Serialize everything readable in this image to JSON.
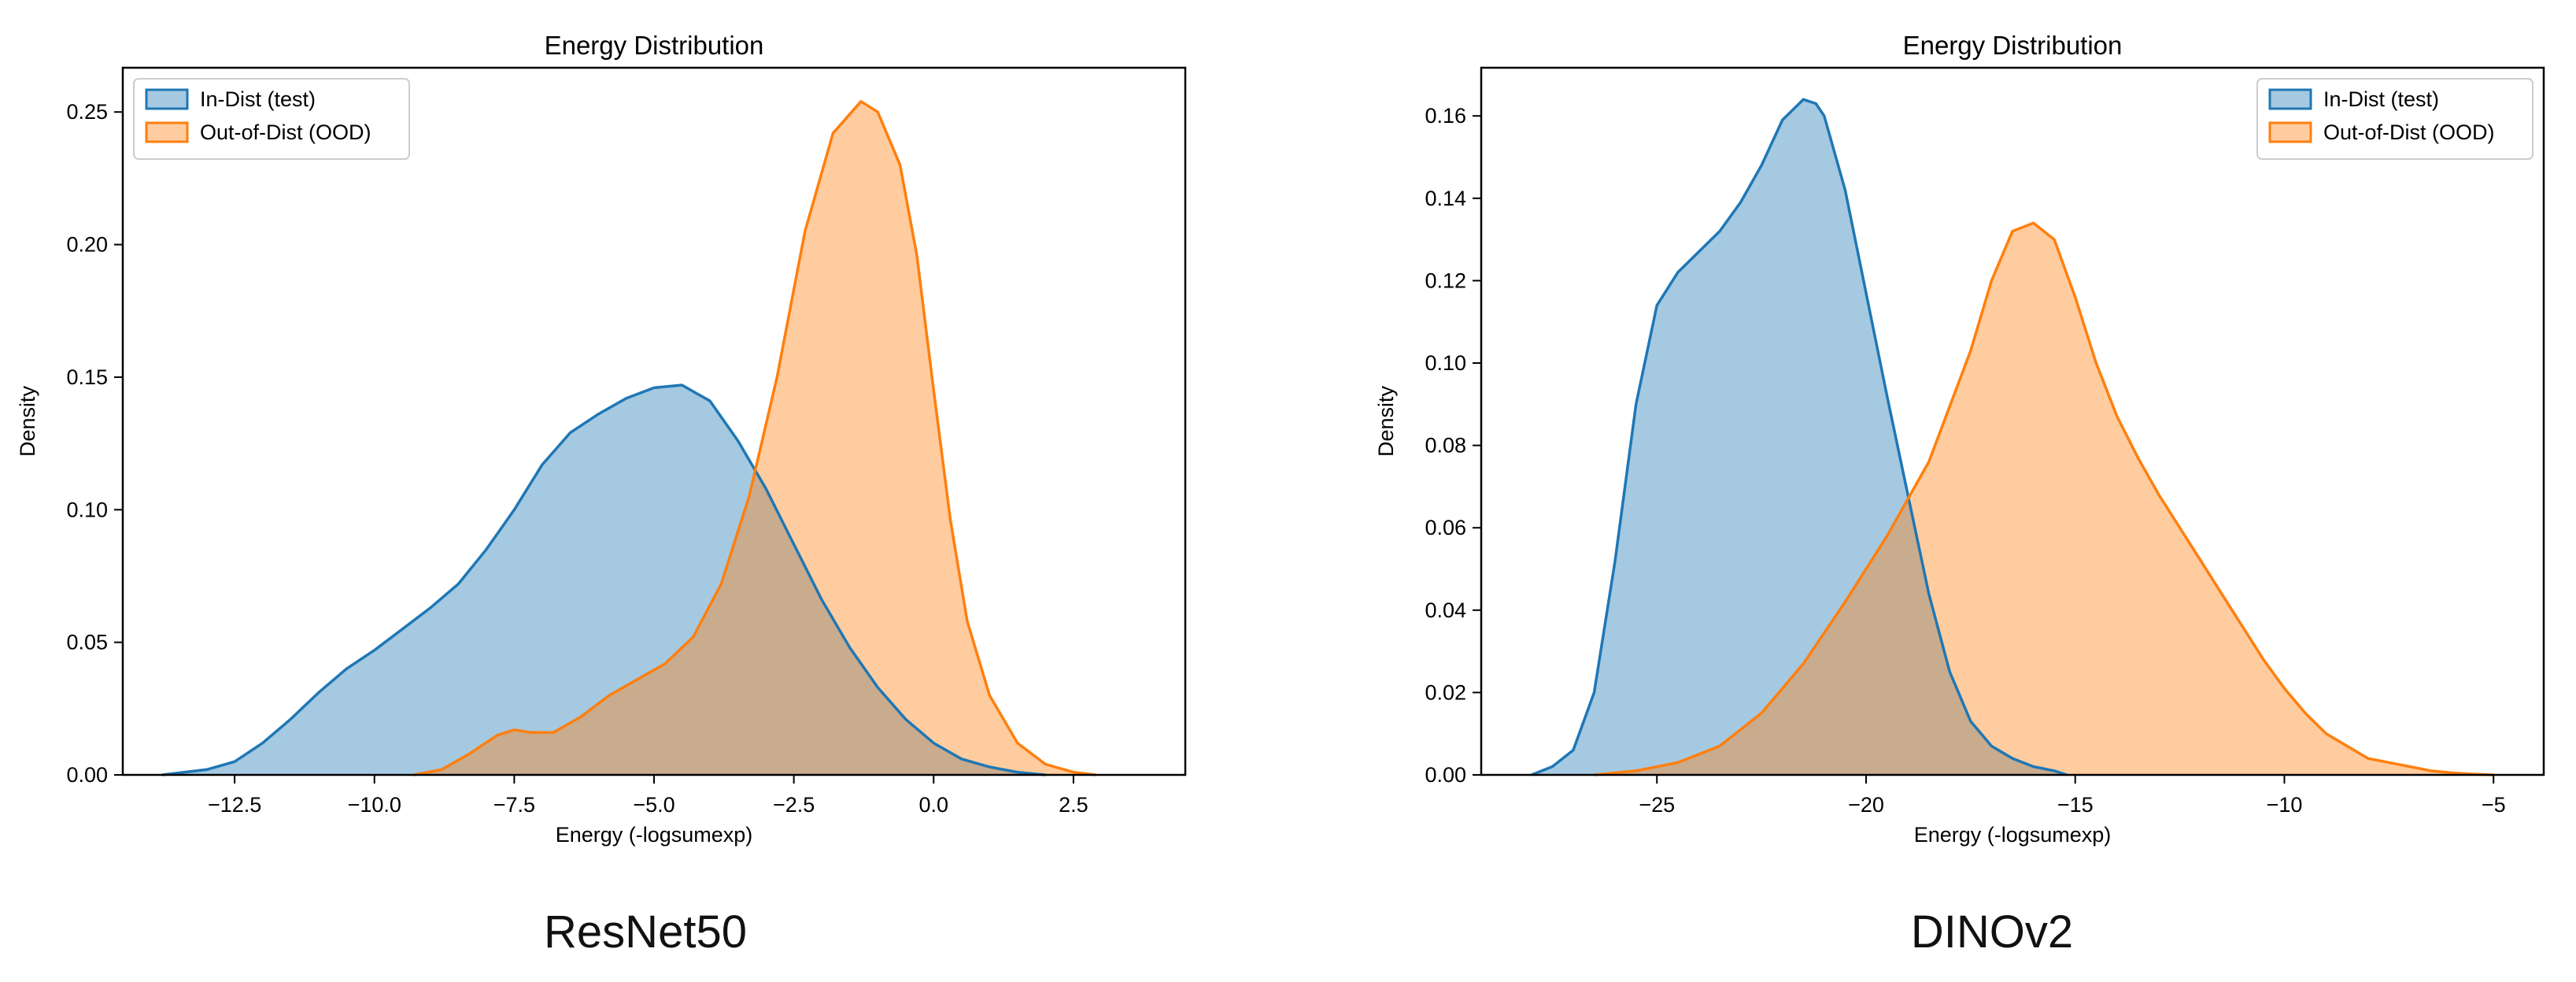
{
  "charts": [
    {
      "chart_data": {
        "type": "area",
        "title": "Energy Distribution",
        "xlabel": "Energy (-logsumexp)",
        "ylabel": "Density",
        "xlim": [
          -14.5,
          4.5
        ],
        "ylim": [
          0,
          0.2667
        ],
        "xticks": [
          -12.5,
          -10.0,
          -7.5,
          -5.0,
          -2.5,
          0.0,
          2.5
        ],
        "xtick_labels": [
          "−12.5",
          "−10.0",
          "−7.5",
          "−5.0",
          "−2.5",
          "0.0",
          "2.5"
        ],
        "yticks": [
          0,
          0.05,
          0.1,
          0.15,
          0.2,
          0.25
        ],
        "ytick_labels": [
          "0.00",
          "0.05",
          "0.10",
          "0.15",
          "0.20",
          "0.25"
        ],
        "legend": "top-left",
        "grid": false,
        "series": [
          {
            "name": "In-Dist (test)",
            "color": "#1f77b4",
            "x": [
              -13.8,
              -13.0,
              -12.5,
              -12.0,
              -11.5,
              -11.0,
              -10.5,
              -10.0,
              -9.5,
              -9.0,
              -8.5,
              -8.0,
              -7.5,
              -7.0,
              -6.5,
              -6.0,
              -5.5,
              -5.0,
              -4.5,
              -4.0,
              -3.5,
              -3.0,
              -2.5,
              -2.0,
              -1.5,
              -1.0,
              -0.5,
              0.0,
              0.5,
              1.0,
              1.5,
              2.0
            ],
            "y": [
              0.0,
              0.002,
              0.005,
              0.012,
              0.021,
              0.031,
              0.04,
              0.047,
              0.055,
              0.063,
              0.072,
              0.085,
              0.1,
              0.117,
              0.129,
              0.136,
              0.142,
              0.146,
              0.147,
              0.141,
              0.126,
              0.108,
              0.087,
              0.066,
              0.048,
              0.033,
              0.021,
              0.012,
              0.006,
              0.003,
              0.001,
              0.0
            ]
          },
          {
            "name": "Out-of-Dist (OOD)",
            "color": "#ff7f0e",
            "x": [
              -9.3,
              -8.8,
              -8.3,
              -7.8,
              -7.5,
              -7.2,
              -6.8,
              -6.3,
              -5.8,
              -5.3,
              -4.8,
              -4.3,
              -3.8,
              -3.3,
              -2.8,
              -2.3,
              -1.8,
              -1.3,
              -1.0,
              -0.6,
              -0.3,
              0.0,
              0.3,
              0.6,
              1.0,
              1.5,
              2.0,
              2.5,
              2.9
            ],
            "y": [
              0.0,
              0.002,
              0.008,
              0.015,
              0.017,
              0.016,
              0.016,
              0.022,
              0.03,
              0.036,
              0.042,
              0.052,
              0.072,
              0.105,
              0.15,
              0.205,
              0.242,
              0.254,
              0.25,
              0.23,
              0.196,
              0.145,
              0.096,
              0.058,
              0.03,
              0.012,
              0.004,
              0.001,
              0.0
            ]
          }
        ]
      }
    },
    {
      "chart_data": {
        "type": "area",
        "title": "Energy Distribution",
        "xlabel": "Energy (-logsumexp)",
        "ylabel": "Density",
        "xlim": [
          -29.2,
          -3.8
        ],
        "ylim": [
          0,
          0.1717
        ],
        "xticks": [
          -25,
          -20,
          -15,
          -10,
          -5
        ],
        "xtick_labels": [
          "−25",
          "−20",
          "−15",
          "−10",
          "−5"
        ],
        "yticks": [
          0,
          0.02,
          0.04,
          0.06,
          0.08,
          0.1,
          0.12,
          0.14,
          0.16
        ],
        "ytick_labels": [
          "0.00",
          "0.02",
          "0.04",
          "0.06",
          "0.08",
          "0.10",
          "0.12",
          "0.14",
          "0.16"
        ],
        "legend": "top-right",
        "grid": false,
        "series": [
          {
            "name": "In-Dist (test)",
            "color": "#1f77b4",
            "x": [
              -28.0,
              -27.5,
              -27.0,
              -26.5,
              -26.0,
              -25.5,
              -25.0,
              -24.5,
              -24.0,
              -23.5,
              -23.0,
              -22.5,
              -22.0,
              -21.5,
              -21.2,
              -21.0,
              -20.5,
              -20.0,
              -19.5,
              -19.0,
              -18.5,
              -18.0,
              -17.5,
              -17.0,
              -16.5,
              -16.0,
              -15.5,
              -15.2
            ],
            "y": [
              0.0,
              0.002,
              0.006,
              0.02,
              0.052,
              0.09,
              0.114,
              0.122,
              0.127,
              0.132,
              0.139,
              0.148,
              0.159,
              0.164,
              0.163,
              0.16,
              0.142,
              0.117,
              0.092,
              0.068,
              0.044,
              0.025,
              0.013,
              0.007,
              0.004,
              0.002,
              0.001,
              0.0
            ]
          },
          {
            "name": "Out-of-Dist (OOD)",
            "color": "#ff7f0e",
            "x": [
              -26.5,
              -25.5,
              -24.5,
              -23.5,
              -22.5,
              -21.5,
              -20.5,
              -19.5,
              -18.5,
              -17.5,
              -17.0,
              -16.5,
              -16.0,
              -15.5,
              -15.0,
              -14.5,
              -14.0,
              -13.5,
              -13.0,
              -12.5,
              -12.0,
              -11.5,
              -11.0,
              -10.5,
              -10.0,
              -9.5,
              -9.0,
              -8.5,
              -8.0,
              -7.5,
              -7.0,
              -6.5,
              -6.0,
              -5.5,
              -5.0
            ],
            "y": [
              0.0,
              0.001,
              0.003,
              0.007,
              0.015,
              0.027,
              0.042,
              0.058,
              0.076,
              0.103,
              0.12,
              0.132,
              0.134,
              0.13,
              0.116,
              0.1,
              0.087,
              0.077,
              0.068,
              0.06,
              0.052,
              0.044,
              0.036,
              0.028,
              0.021,
              0.015,
              0.01,
              0.007,
              0.004,
              0.003,
              0.002,
              0.001,
              0.0005,
              0.0002,
              0.0
            ]
          }
        ]
      }
    }
  ],
  "captions": {
    "left": "ResNet50",
    "right": "DINOv2"
  },
  "colors": {
    "in_dist": "#1f77b4",
    "ood": "#ff7f0e"
  }
}
